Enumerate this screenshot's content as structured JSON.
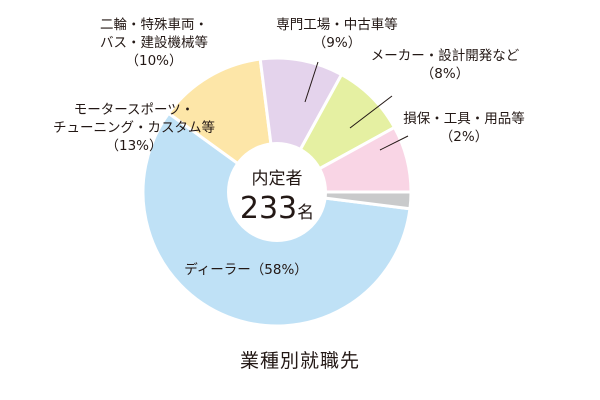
{
  "chart_data": {
    "type": "pie",
    "title": "業種別就職先",
    "center": {
      "label": "内定者",
      "number": "233",
      "unit": "名"
    },
    "series": [
      {
        "name": "ディーラー",
        "label": "ディーラー（58%）",
        "value": 58,
        "color": "#bfe1f6"
      },
      {
        "name": "モータースポーツ・チューニング・カスタム等",
        "lines": [
          "モータースポーツ・",
          "チューニング・カスタム等",
          "（13%）"
        ],
        "value": 13,
        "color": "#fde6a8"
      },
      {
        "name": "二輪・特殊車両・バス・建設機械等",
        "lines": [
          "二輪・特殊車両・",
          "バス・建設機械等",
          "（10%）"
        ],
        "value": 10,
        "color": "#e4d3ec"
      },
      {
        "name": "専門工場・中古車等",
        "lines": [
          "専門工場・中古車等",
          "（9%）"
        ],
        "value": 9,
        "color": "#e5f0a2"
      },
      {
        "name": "メーカー・設計開発など",
        "lines": [
          "メーカー・設計開発など",
          "（8%）"
        ],
        "value": 8,
        "color": "#f9d5e5"
      },
      {
        "name": "損保・工具・用品等",
        "lines": [
          "損保・工具・用品等",
          "（2%）"
        ],
        "value": 2,
        "color": "#c9cacb"
      }
    ]
  }
}
